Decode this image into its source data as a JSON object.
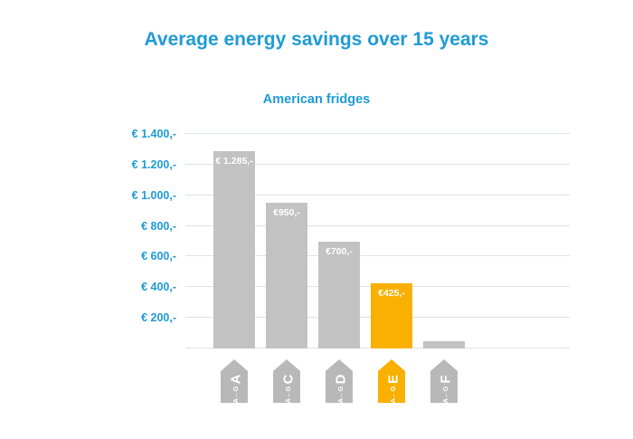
{
  "chart_data": {
    "type": "bar",
    "title": "Average energy savings over 15 years",
    "subtitle": "American fridges",
    "categories": [
      "A",
      "C",
      "D",
      "E",
      "F"
    ],
    "values": [
      1285,
      950,
      700,
      425,
      50
    ],
    "bar_labels": [
      "€ 1.285,-",
      "€950,-",
      "€700,-",
      "€425,-",
      ""
    ],
    "bar_colors": [
      "#c2c2c2",
      "#c2c2c2",
      "#c2c2c2",
      "#f9b000",
      "#c2c2c2"
    ],
    "ylim": [
      0,
      1400
    ],
    "ytick_step": 200,
    "ytick_labels": [
      "€ 200,-",
      "€ 400,-",
      "€ 600,-",
      "€ 800,-",
      "€ 1.000,-",
      "€ 1.200,-",
      "€ 1.400,-"
    ],
    "grid": true,
    "legend_position": "none",
    "xlabel": "",
    "ylabel": "",
    "energy_labels": [
      {
        "letter": "A",
        "scale_text": "A←G",
        "color": "#b8b8b8"
      },
      {
        "letter": "C",
        "scale_text": "A←G",
        "color": "#b8b8b8"
      },
      {
        "letter": "D",
        "scale_text": "A←G",
        "color": "#b8b8b8"
      },
      {
        "letter": "E",
        "scale_text": "A←G",
        "color": "#f9b000"
      },
      {
        "letter": "F",
        "scale_text": "A←G",
        "color": "#b8b8b8"
      }
    ]
  },
  "colors": {
    "accent_blue": "#1e9bd7",
    "bar_gray": "#c2c2c2",
    "bar_orange": "#f9b000",
    "gridline": "#d9e4ec"
  }
}
